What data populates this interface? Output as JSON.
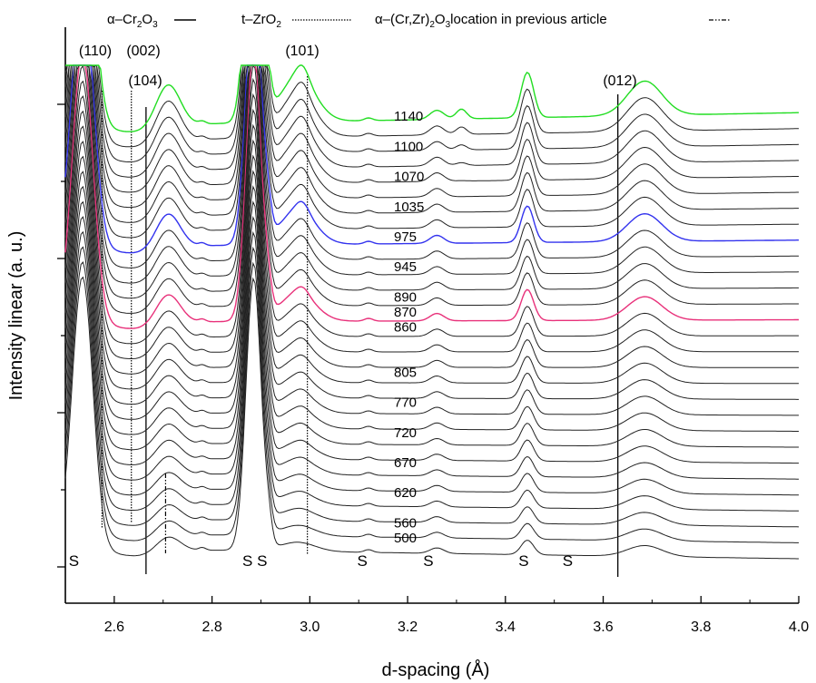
{
  "chart_data": {
    "type": "line",
    "xlabel": "d-spacing (Å)",
    "ylabel": "Intensity linear (a. u.)",
    "xlim": [
      2.5,
      4.0
    ],
    "x_ticks": [
      "2.6",
      "2.8",
      "3.0",
      "3.2",
      "3.4",
      "3.6",
      "3.8",
      "4.0"
    ],
    "legend": {
      "placement": "top",
      "entries": [
        {
          "label": "α–Cr2O3",
          "style": "solid"
        },
        {
          "label": "t–ZrO2",
          "style": "dotted"
        },
        {
          "label": "α–(Cr,Zr)2O3location in previous article",
          "style": "dashdot"
        }
      ]
    },
    "reflections": [
      {
        "label": "(110)",
        "d": 2.575,
        "style": "dotted"
      },
      {
        "label": "(002)",
        "d": 2.635,
        "style": "dotted"
      },
      {
        "label": "(104)",
        "d": 2.665,
        "style": "solid"
      },
      {
        "label": "(101)",
        "d": 2.995,
        "style": "dotted"
      },
      {
        "label": "(012)",
        "d": 3.63,
        "style": "solid"
      },
      {
        "label": "",
        "d": 2.705,
        "style": "dashdot"
      }
    ],
    "substrate_peaks": {
      "label": "S",
      "d": [
        2.51,
        2.865,
        2.895,
        3.1,
        3.235,
        3.43,
        3.52
      ]
    },
    "temperature_labels": [
      {
        "label": "500",
        "index": 0
      },
      {
        "label": "560",
        "index": 1
      },
      {
        "label": "620",
        "index": 3
      },
      {
        "label": "670",
        "index": 5
      },
      {
        "label": "720",
        "index": 7
      },
      {
        "label": "770",
        "index": 9
      },
      {
        "label": "805",
        "index": 11
      },
      {
        "label": "860",
        "index": 14
      },
      {
        "label": "870",
        "index": 15,
        "color": "#e8317a"
      },
      {
        "label": "890",
        "index": 16
      },
      {
        "label": "945",
        "index": 18
      },
      {
        "label": "975",
        "index": 20,
        "color": "#3333ee"
      },
      {
        "label": "1035",
        "index": 22
      },
      {
        "label": "1070",
        "index": 24
      },
      {
        "label": "1100",
        "index": 26
      },
      {
        "label": "1140",
        "index": 28,
        "color": "#22dd22"
      }
    ],
    "series_count": 29,
    "highlighted_series": [
      {
        "index": 15,
        "color": "#e8317a"
      },
      {
        "index": 20,
        "color": "#3333ee"
      },
      {
        "index": 28,
        "color": "#22dd22"
      }
    ],
    "grid": false
  }
}
